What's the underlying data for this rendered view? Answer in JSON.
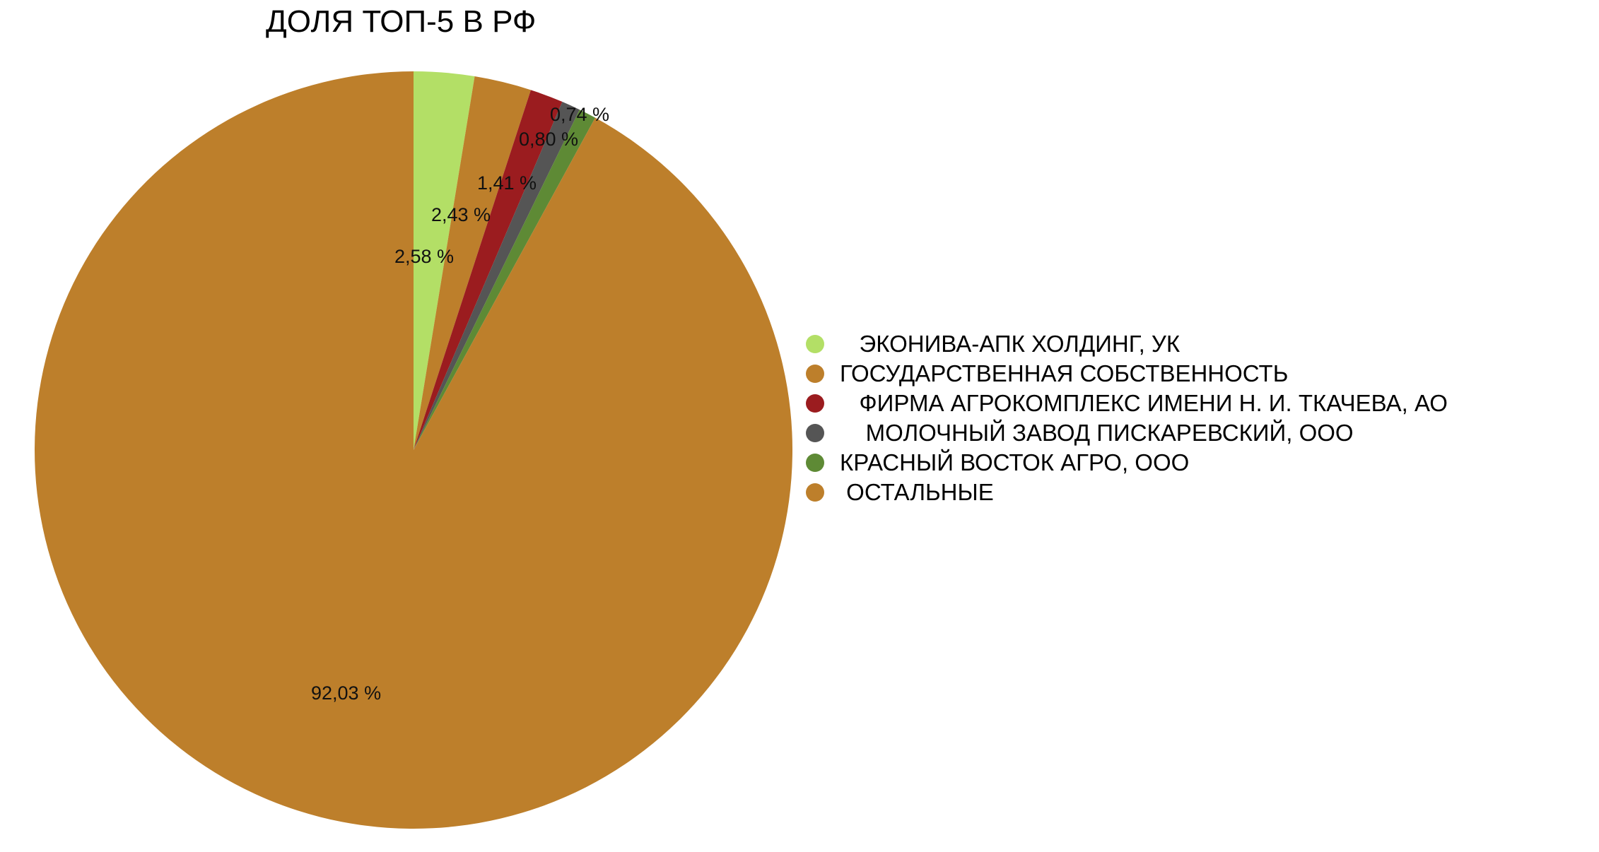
{
  "chart_data": {
    "type": "pie",
    "title": "ДОЛЯ ТОП-5 В РФ",
    "slices": [
      {
        "name": "ЭКОНИВА-АПК ХОЛДИНГ, УК",
        "legend_label": "   ЭКОНИВА-АПК ХОЛДИНГ, УК",
        "value": 2.58,
        "label": "2,58 %",
        "color": "#b3df66"
      },
      {
        "name": "ГОСУДАРСТВЕННАЯ СОБСТВЕННОСТЬ",
        "legend_label": "ГОСУДАРСТВЕННАЯ СОБСТВЕННОСТЬ",
        "value": 2.43,
        "label": "2,43 %",
        "color": "#bd7f2b"
      },
      {
        "name": "ФИРМА АГРОКОМПЛЕКС ИМЕНИ Н. И. ТКАЧЕВА, АО",
        "legend_label": "   ФИРМА АГРОКОМПЛЕКС ИМЕНИ Н. И. ТКАЧЕВА, АО",
        "value": 1.41,
        "label": "1,41 %",
        "color": "#9b1c1f"
      },
      {
        "name": "МОЛОЧНЫЙ ЗАВОД ПИСКАРЕВСКИЙ, ООО",
        "legend_label": "    МОЛОЧНЫЙ ЗАВОД ПИСКАРЕВСКИЙ, ООО",
        "value": 0.8,
        "label": "0,80 %",
        "color": "#555555"
      },
      {
        "name": "КРАСНЫЙ ВОСТОК АГРО, ООО",
        "legend_label": "КРАСНЫЙ ВОСТОК АГРО, ООО",
        "value": 0.74,
        "label": "0,74 %",
        "color": "#5e8a35"
      },
      {
        "name": "ОСТАЛЬНЫЕ",
        "legend_label": " ОСТАЛЬНЫЕ",
        "value": 92.03,
        "label": "92,03 %",
        "color": "#bd7f2b"
      }
    ],
    "start_angle": "top",
    "direction": "clockwise",
    "legend_position": "right"
  }
}
